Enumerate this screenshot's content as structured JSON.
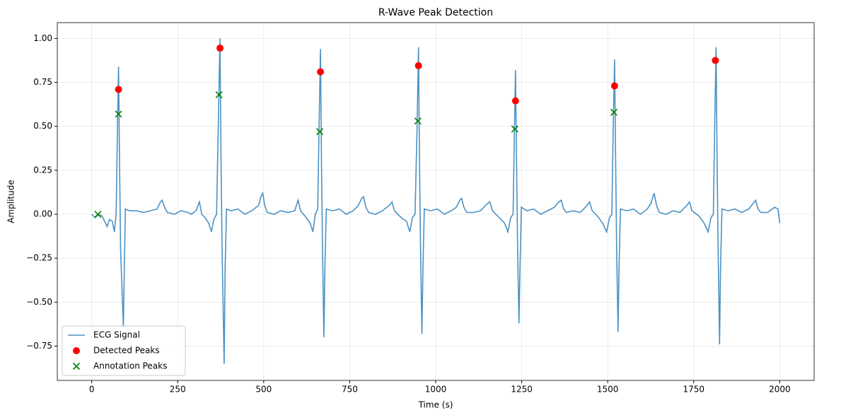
{
  "chart_data": {
    "type": "line",
    "title": "R-Wave Peak Detection",
    "xlabel": "Time (s)",
    "ylabel": "Amplitude",
    "xlim": [
      -100,
      2100
    ],
    "ylim": [
      -0.945,
      1.09
    ],
    "grid": true,
    "legend": "lower left",
    "xticks": [
      0,
      250,
      500,
      750,
      1000,
      1250,
      1500,
      1750,
      2000
    ],
    "yticks": [
      {
        "value": -0.75,
        "label": "−0.75"
      },
      {
        "value": -0.5,
        "label": "−0.50"
      },
      {
        "value": -0.25,
        "label": "−0.25"
      },
      {
        "value": 0,
        "label": "0.00"
      },
      {
        "value": 0.25,
        "label": "0.25"
      },
      {
        "value": 0.5,
        "label": "0.50"
      },
      {
        "value": 0.75,
        "label": "0.75"
      },
      {
        "value": 1,
        "label": "1.00"
      }
    ],
    "series": [
      {
        "name": "ECG Signal",
        "type": "line",
        "color": "#1f77b4",
        "x": [
          0,
          10,
          20,
          30,
          45,
          52,
          60,
          66,
          71,
          75,
          78,
          81,
          84,
          92,
          95,
          98,
          110,
          130,
          150,
          170,
          190,
          200,
          205,
          212,
          220,
          240,
          260,
          280,
          290,
          303,
          313,
          320,
          330,
          340,
          348,
          355,
          363,
          368,
          373,
          376,
          379,
          385,
          388,
          392,
          405,
          425,
          445,
          465,
          485,
          492,
          497,
          503,
          510,
          530,
          550,
          570,
          590,
          600,
          607,
          620,
          635,
          643,
          650,
          657,
          661,
          665,
          668,
          671,
          675,
          678,
          682,
          700,
          720,
          740,
          760,
          775,
          785,
          790,
          797,
          805,
          825,
          845,
          865,
          873,
          880,
          900,
          915,
          925,
          932,
          940,
          946,
          950,
          953,
          956,
          960,
          963,
          967,
          985,
          1005,
          1025,
          1045,
          1060,
          1070,
          1075,
          1082,
          1090,
          1110,
          1130,
          1150,
          1157,
          1165,
          1180,
          1200,
          1210,
          1218,
          1225,
          1229,
          1232,
          1235,
          1238,
          1242,
          1245,
          1249,
          1265,
          1285,
          1305,
          1325,
          1345,
          1358,
          1365,
          1372,
          1380,
          1400,
          1420,
          1440,
          1447,
          1455,
          1470,
          1485,
          1497,
          1505,
          1512,
          1516,
          1520,
          1523,
          1526,
          1530,
          1533,
          1537,
          1555,
          1575,
          1595,
          1615,
          1625,
          1635,
          1642,
          1650,
          1670,
          1690,
          1710,
          1730,
          1738,
          1745,
          1765,
          1780,
          1792,
          1800,
          1807,
          1811,
          1815,
          1818,
          1821,
          1825,
          1828,
          1832,
          1850,
          1870,
          1890,
          1910,
          1922,
          1930,
          1937,
          1945,
          1965,
          1985,
          1995,
          2000
        ],
        "values": [
          0.0,
          -0.02,
          0.0,
          -0.01,
          -0.07,
          -0.03,
          -0.04,
          -0.1,
          0.0,
          0.5,
          0.84,
          0.3,
          -0.2,
          -0.64,
          -0.3,
          0.03,
          0.02,
          0.02,
          0.01,
          0.02,
          0.03,
          0.07,
          0.08,
          0.04,
          0.01,
          0.0,
          0.02,
          0.01,
          0.0,
          0.02,
          0.07,
          0.0,
          -0.02,
          -0.05,
          -0.1,
          -0.03,
          0.0,
          0.5,
          1.0,
          0.3,
          -0.2,
          -0.85,
          -0.3,
          0.03,
          0.02,
          0.03,
          0.0,
          0.02,
          0.05,
          0.1,
          0.12,
          0.05,
          0.01,
          0.0,
          0.02,
          0.01,
          0.02,
          0.08,
          0.02,
          -0.01,
          -0.05,
          -0.1,
          0.0,
          0.03,
          0.5,
          0.94,
          0.3,
          -0.2,
          -0.7,
          -0.3,
          0.03,
          0.02,
          0.03,
          0.0,
          0.02,
          0.05,
          0.09,
          0.1,
          0.04,
          0.01,
          0.0,
          0.02,
          0.05,
          0.07,
          0.02,
          -0.02,
          -0.04,
          -0.1,
          -0.02,
          0.0,
          0.5,
          0.95,
          0.3,
          -0.2,
          -0.68,
          -0.3,
          0.03,
          0.02,
          0.03,
          0.0,
          0.02,
          0.04,
          0.08,
          0.09,
          0.04,
          0.01,
          0.01,
          0.02,
          0.06,
          0.07,
          0.02,
          -0.01,
          -0.05,
          -0.1,
          -0.02,
          0.0,
          0.5,
          0.82,
          0.3,
          -0.2,
          -0.62,
          -0.3,
          0.04,
          0.02,
          0.03,
          0.0,
          0.02,
          0.04,
          0.07,
          0.08,
          0.03,
          0.01,
          0.02,
          0.01,
          0.05,
          0.07,
          0.02,
          -0.01,
          -0.05,
          -0.1,
          -0.02,
          0.0,
          0.5,
          0.88,
          0.3,
          -0.2,
          -0.67,
          -0.3,
          0.03,
          0.02,
          0.03,
          0.0,
          0.03,
          0.06,
          0.12,
          0.05,
          0.01,
          0.0,
          0.02,
          0.01,
          0.05,
          0.07,
          0.02,
          -0.01,
          -0.05,
          -0.1,
          -0.02,
          0.0,
          0.5,
          0.95,
          0.3,
          -0.2,
          -0.74,
          -0.3,
          0.03,
          0.02,
          0.03,
          0.01,
          0.03,
          0.06,
          0.08,
          0.03,
          0.01,
          0.01,
          0.04,
          0.03,
          -0.05
        ]
      },
      {
        "name": "Detected Peaks",
        "type": "scatter",
        "marker": "o",
        "color": "#ff0000",
        "x": [
          78,
          373,
          665,
          950,
          1232,
          1520,
          1813
        ],
        "values": [
          0.71,
          0.945,
          0.81,
          0.845,
          0.645,
          0.73,
          0.875
        ]
      },
      {
        "name": "Annotation Peaks",
        "type": "scatter",
        "marker": "x",
        "color": "#008000",
        "x": [
          18,
          78,
          370,
          663,
          948,
          1230,
          1518
        ],
        "values": [
          0.0,
          0.57,
          0.68,
          0.47,
          0.53,
          0.485,
          0.58
        ]
      }
    ]
  }
}
